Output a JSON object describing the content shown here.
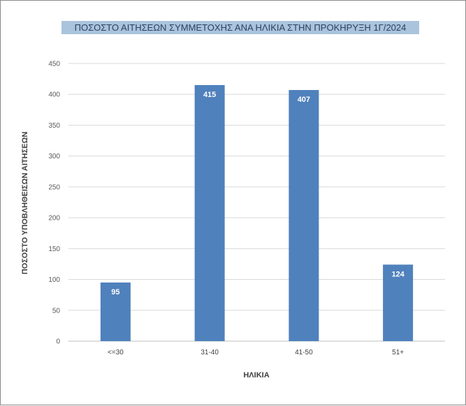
{
  "chart_data": {
    "type": "bar",
    "title": "ΠΟΣΟΣΤΟ ΑΙΤΗΣΕΩΝ ΣΥΜΜΕΤΟΧΗΣ ΑΝΑ ΗΛΙΚΙΑ ΣΤΗΝ ΠΡΟΚΗΡΥΞΗ 1Γ/2024",
    "xlabel": "ΗΛΙΚΙΑ",
    "ylabel": "ΠΟΣΟΣΤΟ ΥΠΟΒΛΗΘΕΙΣΩΝ ΑΙΤΗΣΕΩΝ",
    "categories": [
      "<=30",
      "31-40",
      "41-50",
      "51+"
    ],
    "values": [
      95,
      415,
      407,
      124
    ],
    "ylim": [
      0,
      450
    ],
    "yticks": [
      0,
      50,
      100,
      150,
      200,
      250,
      300,
      350,
      400,
      450
    ],
    "grid": true,
    "data_labels": true,
    "colors": {
      "bar": "#4f81bd",
      "title_highlight": "#a9c4dc"
    }
  }
}
